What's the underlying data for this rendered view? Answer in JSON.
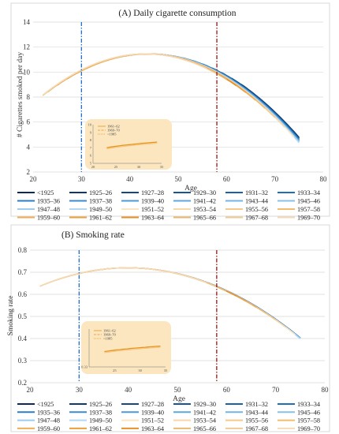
{
  "chart_data": [
    {
      "type": "line",
      "title": "(A) Daily cigarette consumption",
      "xlabel": "Age",
      "ylabel": "# Cigarettes smoked per day",
      "xlim": [
        20,
        80
      ],
      "ylim": [
        2,
        14
      ],
      "xticks": [
        20,
        30,
        40,
        50,
        60,
        70,
        80
      ],
      "yticks": [
        2,
        4,
        6,
        8,
        10,
        12,
        14
      ],
      "vlines": [
        30,
        58
      ],
      "grid": "horizontal",
      "legend_position": "bottom",
      "inset": {
        "xlim": [
          20,
          35
        ],
        "ylim": [
          5,
          10
        ],
        "xticks": [
          20,
          25,
          30,
          35
        ],
        "yticks": [
          5,
          6,
          7,
          8,
          9,
          10
        ],
        "legend": [
          "1961–62",
          "1969–70",
          "<1985"
        ]
      },
      "curve_model": {
        "peak_age": 44,
        "peak_value": 11.45,
        "value_at_75": 4.4,
        "cohort_shift_at_75": 0.08
      },
      "series": [
        {
          "name": "<1925",
          "start_age": 63,
          "end_age": 75
        },
        {
          "name": "1925–26",
          "start_age": 61,
          "end_age": 75
        },
        {
          "name": "1927–28",
          "start_age": 59,
          "end_age": 75
        },
        {
          "name": "1929–30",
          "start_age": 57,
          "end_age": 75
        },
        {
          "name": "1931–32",
          "start_age": 55,
          "end_age": 75
        },
        {
          "name": "1933–34",
          "start_age": 53,
          "end_age": 75
        },
        {
          "name": "1935–36",
          "start_age": 51,
          "end_age": 75
        },
        {
          "name": "1937–38",
          "start_age": 49,
          "end_age": 75
        },
        {
          "name": "1939–40",
          "start_age": 47,
          "end_age": 75
        },
        {
          "name": "1941–42",
          "start_age": 45,
          "end_age": 75
        },
        {
          "name": "1943–44",
          "start_age": 43,
          "end_age": 75
        },
        {
          "name": "1945–46",
          "start_age": 41,
          "end_age": 75
        },
        {
          "name": "1947–48",
          "start_age": 39,
          "end_age": 75
        },
        {
          "name": "1949–50",
          "start_age": 37,
          "end_age": 75
        },
        {
          "name": "1951–52",
          "start_age": 35,
          "end_age": 74
        },
        {
          "name": "1953–54",
          "start_age": 33,
          "end_age": 72
        },
        {
          "name": "1955–56",
          "start_age": 31,
          "end_age": 70
        },
        {
          "name": "1957–58",
          "start_age": 29,
          "end_age": 68
        },
        {
          "name": "1959–60",
          "start_age": 27,
          "end_age": 66
        },
        {
          "name": "1961–62",
          "start_age": 25,
          "end_age": 64
        },
        {
          "name": "1963–64",
          "start_age": 23,
          "end_age": 62
        },
        {
          "name": "1965–66",
          "start_age": 22,
          "end_age": 60
        },
        {
          "name": "1967–68",
          "start_age": 22,
          "end_age": 58
        },
        {
          "name": "1969–70",
          "start_age": 22,
          "end_age": 56
        }
      ]
    },
    {
      "type": "line",
      "title": "(B) Smoking rate",
      "xlabel": "Age",
      "ylabel": "Smoking rate",
      "xlim": [
        20,
        80
      ],
      "ylim": [
        0.2,
        0.8
      ],
      "xticks": [
        20,
        30,
        40,
        50,
        60,
        70,
        80
      ],
      "yticks": [
        0.2,
        0.3,
        0.4,
        0.5,
        0.6,
        0.7,
        0.8
      ],
      "vlines": [
        30,
        58
      ],
      "grid": "horizontal",
      "legend_position": "bottom",
      "inset": {
        "xlim": [
          20,
          35
        ],
        "ylim": [
          0.33,
          0.4
        ],
        "xticks": [
          25,
          30,
          35
        ],
        "yticks": [
          0.33
        ],
        "legend": [
          "1961–62",
          "1969–70",
          "<1985"
        ]
      },
      "curve_model": {
        "peak_age": 40,
        "peak_value": 0.72,
        "value_at_75": 0.4,
        "cohort_shift_at_75": 0.01
      },
      "series": [
        {
          "name": "<1925",
          "start_age": 63,
          "end_age": 75
        },
        {
          "name": "1925–26",
          "start_age": 61,
          "end_age": 75
        },
        {
          "name": "1927–28",
          "start_age": 59,
          "end_age": 75
        },
        {
          "name": "1929–30",
          "start_age": 57,
          "end_age": 75
        },
        {
          "name": "1931–32",
          "start_age": 55,
          "end_age": 75
        },
        {
          "name": "1933–34",
          "start_age": 53,
          "end_age": 75
        },
        {
          "name": "1935–36",
          "start_age": 51,
          "end_age": 75
        },
        {
          "name": "1937–38",
          "start_age": 49,
          "end_age": 75
        },
        {
          "name": "1939–40",
          "start_age": 47,
          "end_age": 75
        },
        {
          "name": "1941–42",
          "start_age": 45,
          "end_age": 75
        },
        {
          "name": "1943–44",
          "start_age": 43,
          "end_age": 75
        },
        {
          "name": "1945–46",
          "start_age": 41,
          "end_age": 75
        },
        {
          "name": "1947–48",
          "start_age": 39,
          "end_age": 75
        },
        {
          "name": "1949–50",
          "start_age": 37,
          "end_age": 75
        },
        {
          "name": "1951–52",
          "start_age": 35,
          "end_age": 74
        },
        {
          "name": "1953–54",
          "start_age": 33,
          "end_age": 72
        },
        {
          "name": "1955–56",
          "start_age": 31,
          "end_age": 70
        },
        {
          "name": "1957–58",
          "start_age": 29,
          "end_age": 68
        },
        {
          "name": "1959–60",
          "start_age": 27,
          "end_age": 66
        },
        {
          "name": "1961–62",
          "start_age": 25,
          "end_age": 64
        },
        {
          "name": "1963–64",
          "start_age": 23,
          "end_age": 62
        },
        {
          "name": "1965–66",
          "start_age": 22,
          "end_age": 60
        },
        {
          "name": "1967–68",
          "start_age": 22,
          "end_age": 58
        },
        {
          "name": "1969–70",
          "start_age": 22,
          "end_age": 56
        }
      ]
    }
  ],
  "colors": {
    "series": [
      "#0b2a5b",
      "#0f3870",
      "#144784",
      "#175596",
      "#1a62a7",
      "#1f6fb6",
      "#2a7ec4",
      "#3a8ccf",
      "#4c9ad8",
      "#5fa7df",
      "#74b3e5",
      "#89c0ea",
      "#9ecbee",
      "#b3d7f2",
      "#fbe4c2",
      "#f8d6a6",
      "#f6c98b",
      "#f3bb70",
      "#f0ad56",
      "#ec9f3d",
      "#e59127",
      "#e9b870",
      "#efca95",
      "#f4dab6"
    ],
    "vline_left": "#1f6fd1",
    "vline_right": "#8b1a1a",
    "inset_bg": "#fbe6bf",
    "grid": "#d9d9d9",
    "inset_series": "#e8941c"
  }
}
